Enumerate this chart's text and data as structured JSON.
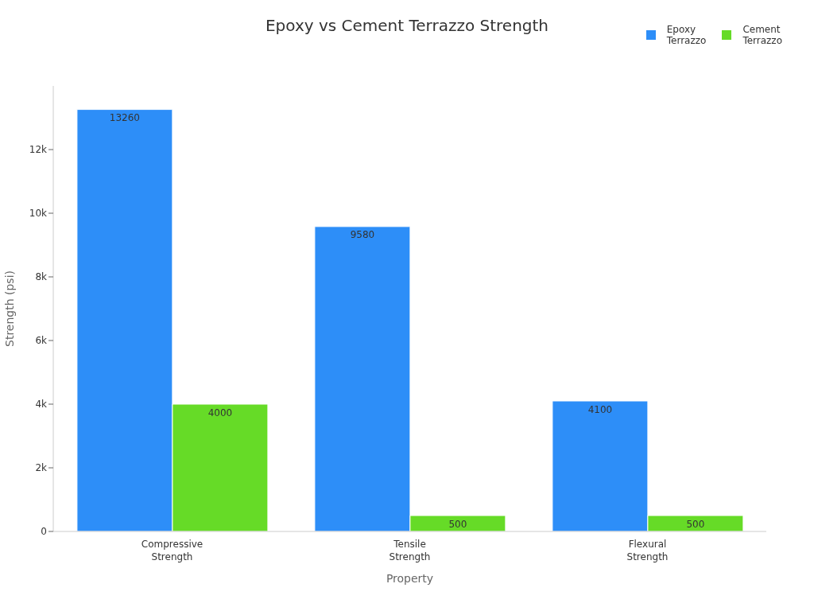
{
  "chart_data": {
    "type": "bar",
    "title": "Epoxy vs Cement Terrazzo Strength",
    "xlabel": "Property",
    "ylabel": "Strength (psi)",
    "categories": [
      "Compressive Strength",
      "Tensile Strength",
      "Flexural Strength"
    ],
    "series": [
      {
        "name": "Epoxy Terrazzo",
        "color": "#2d8ef8",
        "values": [
          13260,
          9580,
          4100
        ]
      },
      {
        "name": "Cement Terrazzo",
        "color": "#66db27",
        "values": [
          4000,
          500,
          500
        ]
      }
    ],
    "ylim": [
      0,
      14000
    ],
    "yticks": [
      0,
      {
        "value": 2000,
        "label": "2k"
      },
      {
        "value": 4000,
        "label": "4k"
      },
      {
        "value": 6000,
        "label": "6k"
      },
      {
        "value": 8000,
        "label": "8k"
      },
      {
        "value": 10000,
        "label": "10k"
      },
      {
        "value": 12000,
        "label": "12k"
      }
    ],
    "grid": false,
    "legend": "top right",
    "data_labels": true
  }
}
